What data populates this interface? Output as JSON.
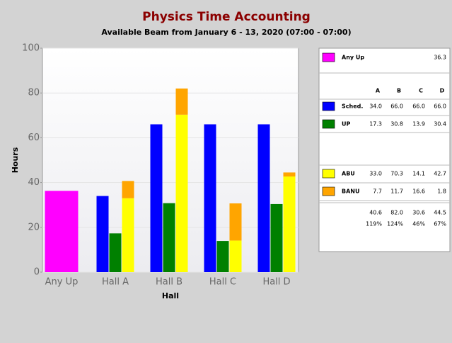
{
  "chart_data": {
    "type": "bar",
    "title": "Physics Time Accounting",
    "subtitle": "Available Beam from January 6 - 13, 2020 (07:00 - 07:00)",
    "x_label": "Hall",
    "y_label": "Hours",
    "categories": [
      "Any Up",
      "Hall A",
      "Hall B",
      "Hall C",
      "Hall D"
    ],
    "ylim": [
      0,
      100
    ],
    "yticks": [
      0,
      20,
      40,
      60,
      80,
      100
    ],
    "grid": true,
    "table_columns": [
      "A",
      "B",
      "C",
      "D"
    ],
    "series": [
      {
        "name": "Any Up",
        "color": "#ff00ff",
        "values": [
          36.3,
          null,
          null,
          null,
          null
        ]
      },
      {
        "name": "Sched.",
        "color": "#0000ff",
        "values": [
          null,
          34,
          66,
          66,
          66
        ],
        "value_labels": [
          null,
          "34.0",
          "66.0",
          "66.0",
          "66.0"
        ]
      },
      {
        "name": "UP",
        "color": "#008000",
        "values": [
          null,
          17.3,
          30.8,
          13.9,
          30.4
        ]
      },
      {
        "name": "ABU",
        "color": "#ffff00",
        "stack": "beam",
        "values": [
          null,
          33,
          70.3,
          14.1,
          42.7
        ],
        "value_labels": [
          null,
          "33.0",
          "70.3",
          "14.1",
          "42.7"
        ]
      },
      {
        "name": "BANU",
        "color": "#ffa500",
        "stack": "beam",
        "values": [
          null,
          7.7,
          11.7,
          16.6,
          1.8
        ]
      }
    ],
    "totals": {
      "values": [
        null,
        40.6,
        82,
        30.6,
        44.5
      ],
      "value_labels": [
        null,
        "40.6",
        "82.0",
        "30.6",
        "44.5"
      ]
    },
    "percent": {
      "values": [
        null,
        119,
        124,
        46,
        67
      ],
      "value_labels": [
        null,
        "119%",
        "124%",
        "46%",
        "67%"
      ]
    }
  }
}
